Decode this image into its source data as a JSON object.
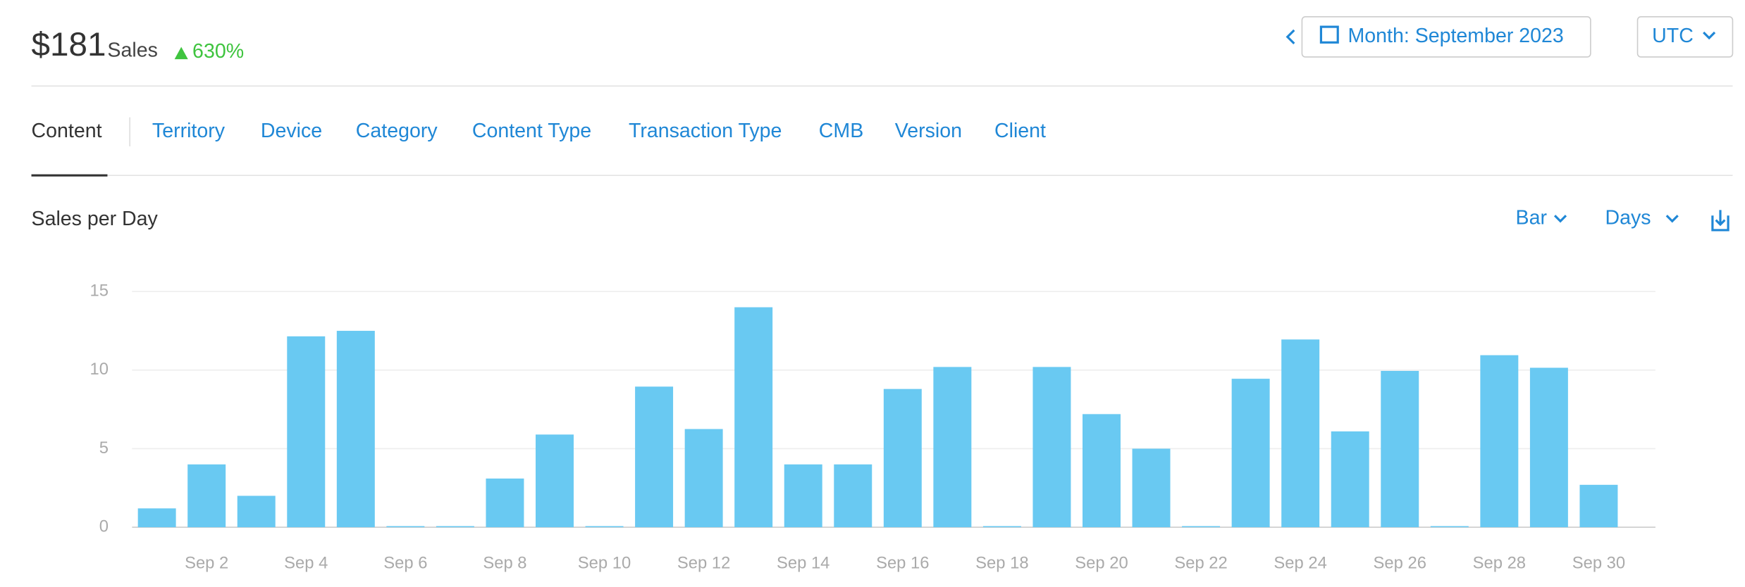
{
  "header": {
    "amount": "$181",
    "amount_label": "Sales",
    "change": "630%",
    "period": "Month: September 2023",
    "timezone": "UTC"
  },
  "tabs": [
    "Content",
    "Territory",
    "Device",
    "Category",
    "Content Type",
    "Transaction Type",
    "CMB",
    "Version",
    "Client"
  ],
  "panel": {
    "title": "Sales per Day",
    "chart_style": "Bar",
    "interval": "Days"
  },
  "chart_data": {
    "type": "bar",
    "color": "#69c9f2",
    "grid": true,
    "categories": [
      null,
      "Sep 2",
      null,
      "Sep 4",
      null,
      "Sep 6",
      null,
      "Sep 8",
      null,
      "Sep 10",
      null,
      "Sep 12",
      null,
      "Sep 14",
      null,
      "Sep 16",
      null,
      "Sep 18",
      null,
      "Sep 20",
      null,
      "Sep 22",
      null,
      "Sep 24",
      null,
      "Sep 26",
      null,
      "Sep 28",
      null,
      "Sep 30"
    ],
    "values": [
      1.2,
      4,
      2,
      12.15,
      12.5,
      0,
      0,
      3.1,
      5.9,
      0,
      8.95,
      6.25,
      14,
      4,
      4,
      8.8,
      10.2,
      0,
      10.2,
      7.2,
      5,
      0,
      9.45,
      11.95,
      6.1,
      9.95,
      0,
      10.95,
      10.15,
      2.7
    ],
    "ylim": [
      0,
      15
    ],
    "yticks": [
      0,
      5,
      10,
      15
    ]
  }
}
